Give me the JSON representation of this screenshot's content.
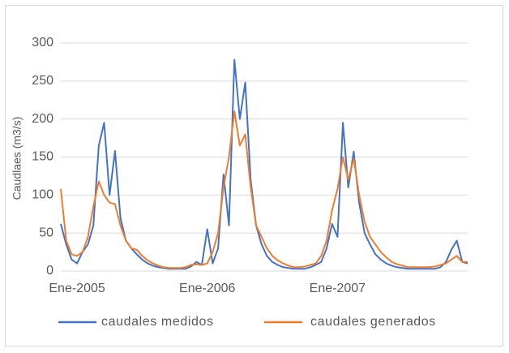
{
  "chart_data": {
    "type": "line",
    "y_label": "Caudlaes (m3/s)",
    "categories": [
      null,
      null,
      null,
      "Ene-2005",
      null,
      null,
      null,
      null,
      null,
      null,
      null,
      null,
      null,
      null,
      null,
      null,
      null,
      null,
      null,
      null,
      null,
      null,
      null,
      null,
      null,
      null,
      null,
      "Ene-2006",
      null,
      null,
      null,
      null,
      null,
      null,
      null,
      null,
      null,
      null,
      null,
      null,
      null,
      null,
      null,
      null,
      null,
      null,
      null,
      null,
      null,
      null,
      null,
      "Ene-2007",
      null,
      null,
      null,
      null,
      null,
      null,
      null,
      null,
      null,
      null,
      null,
      null,
      null,
      null,
      null,
      null,
      null,
      null,
      null,
      null,
      null,
      null,
      null,
      null
    ],
    "series": [
      {
        "name": "caudales medidos",
        "color": "#4472c4",
        "values": [
          62,
          35,
          15,
          10,
          25,
          35,
          60,
          165,
          195,
          100,
          158,
          70,
          40,
          30,
          22,
          15,
          10,
          7,
          5,
          4,
          3,
          3,
          3,
          3,
          6,
          12,
          8,
          55,
          10,
          30,
          127,
          60,
          278,
          200,
          248,
          120,
          60,
          35,
          20,
          12,
          8,
          5,
          4,
          3,
          3,
          3,
          5,
          8,
          12,
          30,
          62,
          45,
          195,
          110,
          157,
          90,
          50,
          35,
          22,
          15,
          10,
          7,
          5,
          4,
          3,
          3,
          3,
          3,
          3,
          3,
          5,
          12,
          28,
          40,
          12,
          10
        ]
      },
      {
        "name": "caudales generados",
        "color": "#ed7d31",
        "values": [
          108,
          40,
          22,
          20,
          25,
          45,
          85,
          118,
          100,
          90,
          88,
          60,
          40,
          30,
          28,
          20,
          14,
          10,
          7,
          5,
          4,
          4,
          4,
          5,
          8,
          9,
          8,
          10,
          25,
          50,
          110,
          150,
          210,
          165,
          180,
          110,
          60,
          45,
          30,
          20,
          14,
          10,
          7,
          5,
          5,
          6,
          8,
          10,
          20,
          40,
          80,
          108,
          150,
          120,
          148,
          100,
          65,
          45,
          35,
          25,
          18,
          12,
          9,
          7,
          5,
          5,
          5,
          5,
          5,
          6,
          8,
          10,
          15,
          20,
          12,
          12
        ]
      }
    ],
    "ylim": [
      0,
      300
    ],
    "yticks": [
      0,
      50,
      100,
      150,
      200,
      250,
      300
    ],
    "grid": true,
    "legend": "bottom"
  }
}
